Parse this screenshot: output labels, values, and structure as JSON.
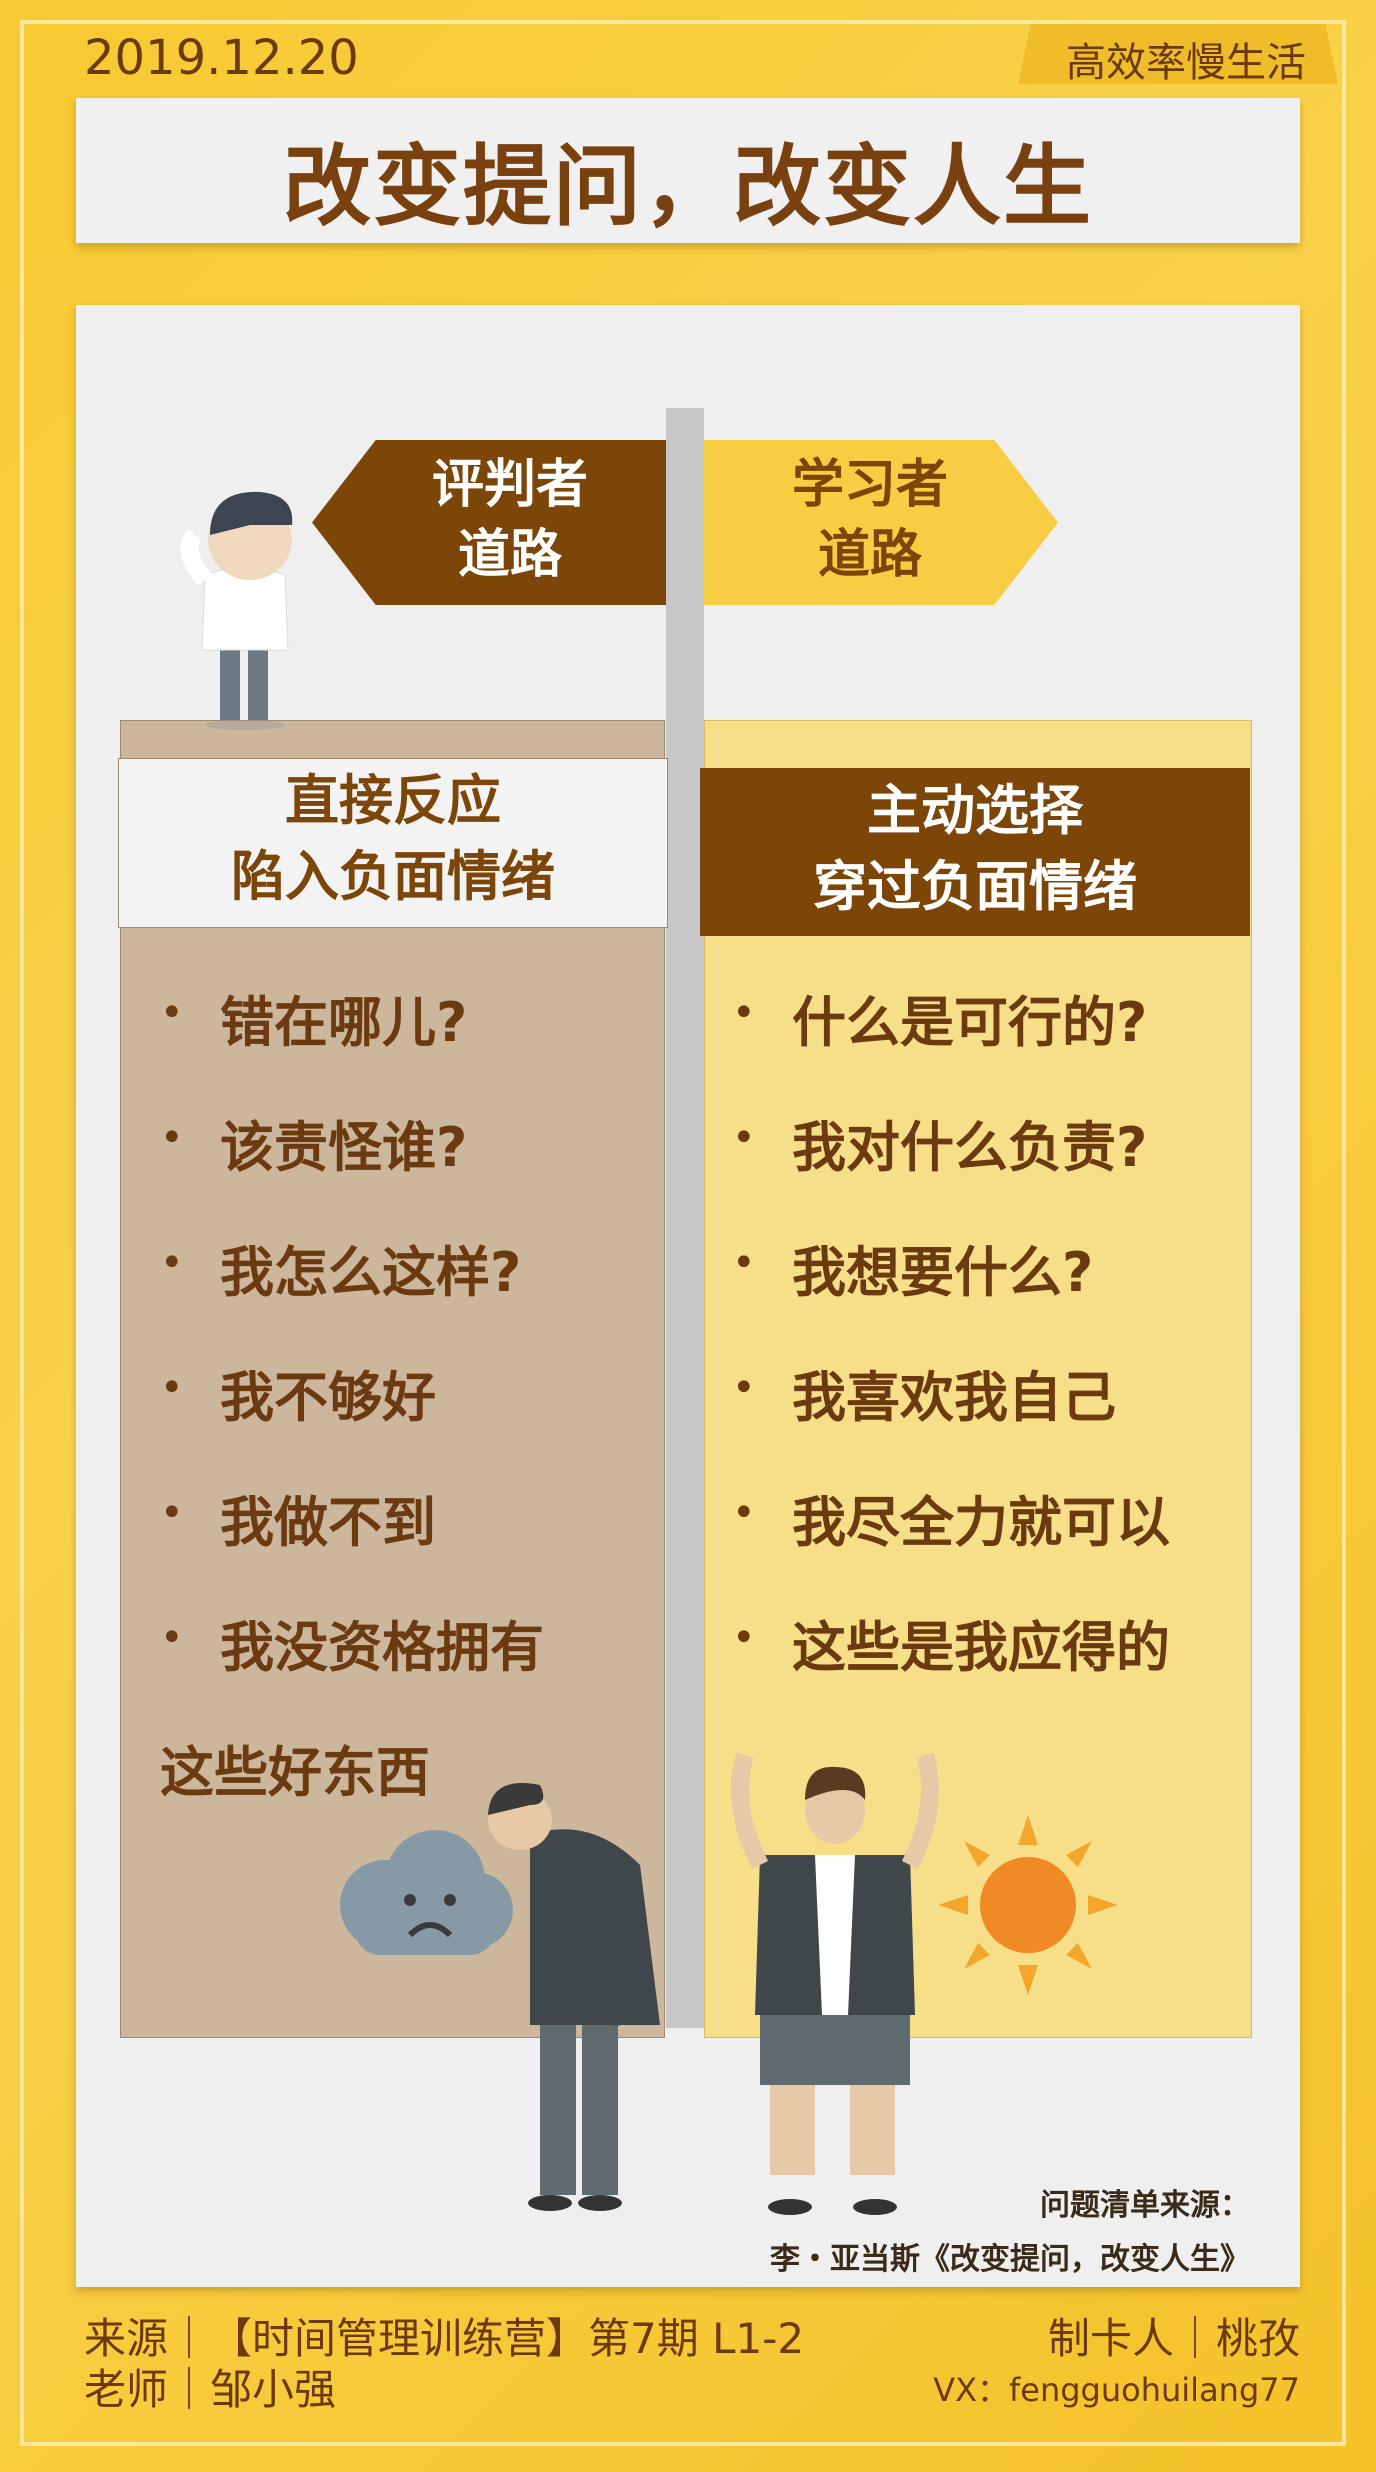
{
  "header": {
    "date": "2019.12.20",
    "brand": "高效率慢生活"
  },
  "title": "改变提问，改变人生",
  "left": {
    "sign_lines": [
      "评判者",
      "道路"
    ],
    "head_lines": [
      "直接反应",
      "陷入负面情绪"
    ],
    "items": [
      "错在哪儿?",
      "该责怪谁?",
      "我怎么这样?",
      "我不够好",
      "我做不到",
      "我没资格拥有"
    ],
    "continuation": "这些好东西"
  },
  "right": {
    "sign_lines": [
      "学习者",
      "道路"
    ],
    "head_lines": [
      "主动选择",
      "穿过负面情绪"
    ],
    "items": [
      "什么是可行的?",
      "我对什么负责?",
      "我想要什么?",
      "我喜欢我自己",
      "我尽全力就可以",
      "这些是我应得的"
    ]
  },
  "source_note": {
    "line1": "问题清单来源：",
    "line2": "李・亚当斯《改变提问，改变人生》"
  },
  "footer": {
    "left_line1": "来源｜【时间管理训练营】第7期  L1-2",
    "left_line2": "老师｜邹小强",
    "right_line1": "制卡人｜桃孜",
    "right_line2": "VX：fengguohuilang77"
  },
  "colors": {
    "background": "#f7c932",
    "brown": "#7d4609",
    "tan": "#ccb69c",
    "light_yellow": "#f7df8a",
    "sign_yellow": "#f7ce43"
  },
  "icons": [
    "confused-man-icon",
    "sad-cloud-icon",
    "sad-man-icon",
    "happy-man-icon",
    "sun-icon"
  ]
}
